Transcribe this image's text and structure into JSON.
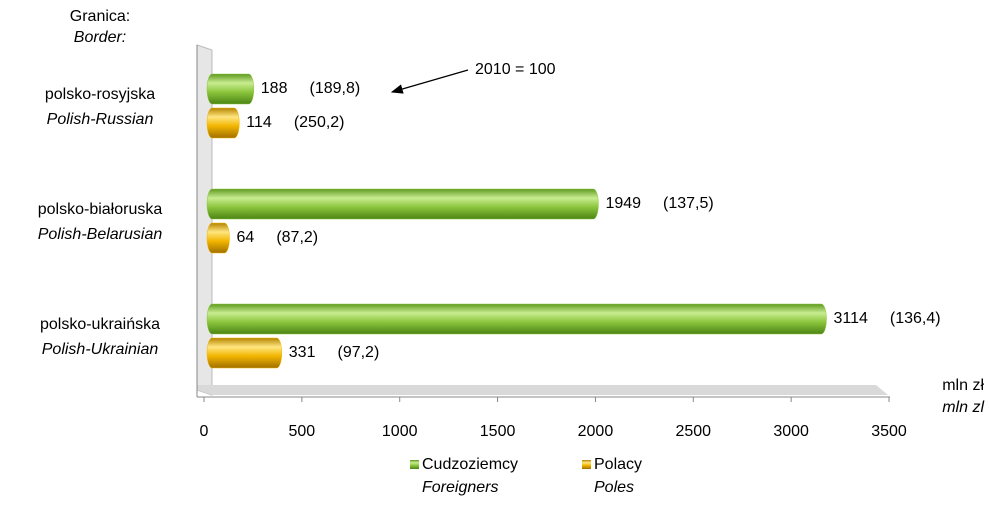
{
  "chart_data": {
    "type": "bar",
    "axis_title": "Granica:",
    "axis_title_en": "Border:",
    "x_label": "mln zł",
    "x_label_en": "mln zl",
    "annotation": "2010 = 100",
    "categories": [
      "polsko-rosyjska",
      "polsko-białoruska",
      "polsko-ukraińska"
    ],
    "categories_en": [
      "Polish-Russian",
      "Polish-Belarusian",
      "Polish-Ukrainian"
    ],
    "series": [
      {
        "name": "Cudzoziemcy",
        "name_en": "Foreigners",
        "color": "#8cc63e",
        "values": [
          188,
          1949,
          3114
        ],
        "index": [
          189.8,
          137.5,
          136.4
        ],
        "index_labels": [
          "(189,8)",
          "(137,5)",
          "(136,4)"
        ]
      },
      {
        "name": "Polacy",
        "name_en": "Poles",
        "color": "#f2b600",
        "values": [
          114,
          64,
          331
        ],
        "index": [
          250.2,
          87.2,
          97.2
        ],
        "index_labels": [
          "(250,2)",
          "(87,2)",
          "(97,2)"
        ]
      }
    ],
    "xlim": [
      0,
      3500
    ],
    "xticks": [
      0,
      500,
      1000,
      1500,
      2000,
      2500,
      3000,
      3500
    ]
  }
}
